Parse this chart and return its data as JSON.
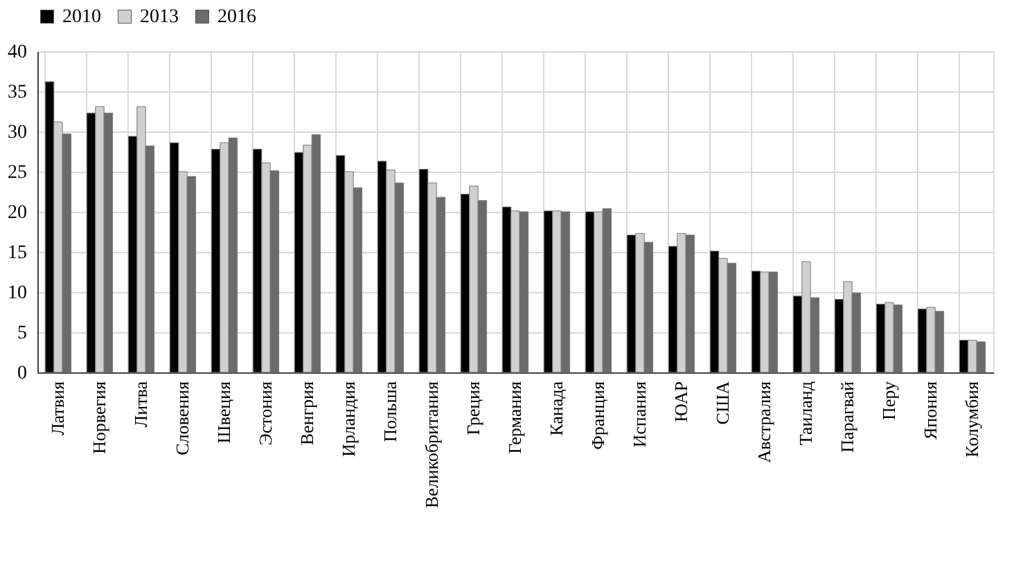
{
  "chart_data": {
    "type": "bar",
    "categories": [
      "Латвия",
      "Норвегия",
      "Литва",
      "Словения",
      "Швеция",
      "Эстония",
      "Венгрия",
      "Ирландия",
      "Польша",
      "Великобритания",
      "Греция",
      "Германия",
      "Канада",
      "Франция",
      "Испания",
      "ЮАР",
      "США",
      "Австралия",
      "Таиланд",
      "Парагвай",
      "Перу",
      "Япония",
      "Колумбия"
    ],
    "series": [
      {
        "name": "2010",
        "color": "#000000",
        "values": [
          36.2,
          32.3,
          29.4,
          28.6,
          27.8,
          27.8,
          27.4,
          27.0,
          26.3,
          25.3,
          22.2,
          20.6,
          20.1,
          20.0,
          17.1,
          15.7,
          15.1,
          12.6,
          9.5,
          9.1,
          8.5,
          7.9,
          4.0
        ]
      },
      {
        "name": "2013",
        "color": "#d0d0d0",
        "values": [
          31.2,
          33.1,
          33.1,
          25.0,
          28.6,
          26.1,
          28.3,
          25.0,
          25.2,
          23.6,
          23.2,
          20.1,
          20.1,
          20.0,
          17.3,
          17.3,
          14.2,
          12.5,
          13.8,
          11.3,
          8.7,
          8.1,
          4.0
        ]
      },
      {
        "name": "2016",
        "color": "#6b6b6b",
        "values": [
          29.7,
          32.3,
          28.2,
          24.4,
          29.2,
          25.1,
          29.6,
          23.0,
          23.6,
          21.8,
          21.4,
          20.0,
          20.0,
          20.4,
          16.2,
          17.1,
          13.6,
          12.5,
          9.3,
          9.9,
          8.4,
          7.6,
          3.8
        ]
      }
    ],
    "ylim": [
      0,
      40
    ],
    "yticks": [
      0,
      5,
      10,
      15,
      20,
      25,
      30,
      35,
      40
    ],
    "grid": true,
    "legend": "top"
  }
}
